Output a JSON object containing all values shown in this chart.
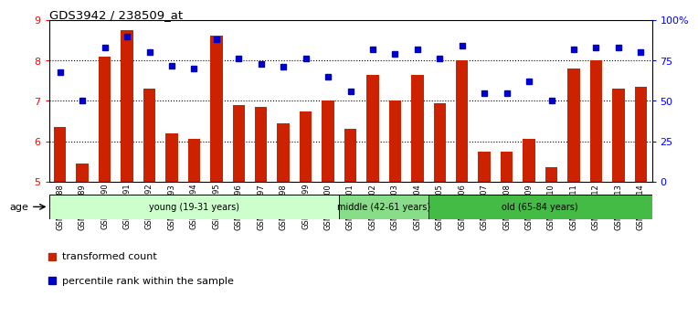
{
  "title": "GDS3942 / 238509_at",
  "samples": [
    "GSM812988",
    "GSM812989",
    "GSM812990",
    "GSM812991",
    "GSM812992",
    "GSM812993",
    "GSM812994",
    "GSM812995",
    "GSM812996",
    "GSM812997",
    "GSM812998",
    "GSM812999",
    "GSM813000",
    "GSM813001",
    "GSM813002",
    "GSM813003",
    "GSM813004",
    "GSM813005",
    "GSM813006",
    "GSM813007",
    "GSM813008",
    "GSM813009",
    "GSM813010",
    "GSM813011",
    "GSM813012",
    "GSM813013",
    "GSM813014"
  ],
  "bar_values": [
    6.35,
    5.45,
    8.1,
    8.75,
    7.3,
    6.2,
    6.05,
    8.62,
    6.9,
    6.85,
    6.45,
    6.75,
    7.0,
    6.3,
    7.65,
    7.0,
    7.65,
    6.95,
    8.0,
    5.75,
    5.75,
    6.05,
    5.35,
    7.8,
    8.0,
    7.3,
    7.35
  ],
  "percentile_values": [
    68,
    50,
    83,
    90,
    80,
    72,
    70,
    88,
    76,
    73,
    71,
    76,
    65,
    56,
    82,
    79,
    82,
    76,
    84,
    55,
    55,
    62,
    50,
    82,
    83,
    83,
    80
  ],
  "groups": [
    {
      "label": "young (19-31 years)",
      "start": 0,
      "end": 13,
      "color": "#ccffcc"
    },
    {
      "label": "middle (42-61 years)",
      "start": 13,
      "end": 17,
      "color": "#88dd88"
    },
    {
      "label": "old (65-84 years)",
      "start": 17,
      "end": 27,
      "color": "#44bb44"
    }
  ],
  "bar_color": "#cc2200",
  "dot_color": "#0000cc",
  "ylim_left": [
    5,
    9
  ],
  "ylim_right": [
    0,
    100
  ],
  "yticks_left": [
    5,
    6,
    7,
    8,
    9
  ],
  "yticks_right": [
    0,
    25,
    50,
    75,
    100
  ],
  "ytick_labels_right": [
    "0",
    "25",
    "50",
    "75",
    "100%"
  ],
  "grid_values": [
    6,
    7,
    8
  ],
  "age_label": "age",
  "legend_bar_label": "transformed count",
  "legend_dot_label": "percentile rank within the sample"
}
